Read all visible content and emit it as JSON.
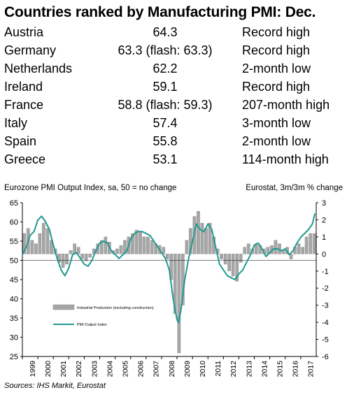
{
  "title": "Countries ranked by Manufacturing PMI: Dec.",
  "rankings": [
    {
      "country": "Austria",
      "value": "64.3",
      "note": "Record high"
    },
    {
      "country": "Germany",
      "value": "63.3 (flash: 63.3)",
      "note": "Record high"
    },
    {
      "country": "Netherlands",
      "value": "62.2",
      "note": "2-month low"
    },
    {
      "country": "Ireland",
      "value": "59.1",
      "note": "Record high"
    },
    {
      "country": "France",
      "value": "58.8 (flash: 59.3)",
      "note": "207-month high"
    },
    {
      "country": "Italy",
      "value": "57.4",
      "note": "3-month low"
    },
    {
      "country": "Spain",
      "value": "55.8",
      "note": "2-month low"
    },
    {
      "country": "Greece",
      "value": "53.1",
      "note": "114-month high"
    }
  ],
  "source": "Sources: IHS Markit, Eurostat",
  "chart_data": {
    "type": "bar+line",
    "left_axis_label": "Eurozone PMI Output Index, sa, 50 = no change",
    "right_axis_label": "Eurostat, 3m/3m % change",
    "left_ylim": [
      25,
      65
    ],
    "left_ticks": [
      "65",
      "60",
      "55",
      "50",
      "45",
      "40",
      "35",
      "30",
      "25"
    ],
    "right_ylim": [
      -6,
      3
    ],
    "right_ticks": [
      "3",
      "2",
      "1",
      "0",
      "-1",
      "-2",
      "-3",
      "-4",
      "-5",
      "-6"
    ],
    "x_ticks": [
      "1999",
      "2000",
      "2001",
      "2002",
      "2003",
      "2004",
      "2005",
      "2006",
      "2007",
      "2008",
      "2009",
      "2010",
      "2011",
      "2012",
      "2013",
      "2014",
      "2015",
      "2016",
      "2017"
    ],
    "x_range": [
      1999.0,
      2018.0
    ],
    "colors": {
      "bars": "#a6a6a6",
      "line": "#1f9a8e",
      "axis": "#000000"
    },
    "legend": {
      "placement": "left-middle",
      "bars_label": "Industrial Production (excluding construction)",
      "line_label": "PMI Output Index"
    },
    "series": [
      {
        "name": "PMI Output Index",
        "axis": "left",
        "x": [
          1999.0,
          1999.25,
          1999.5,
          1999.75,
          2000.0,
          2000.25,
          2000.5,
          2000.75,
          2001.0,
          2001.25,
          2001.5,
          2001.75,
          2002.0,
          2002.25,
          2002.5,
          2002.75,
          2003.0,
          2003.25,
          2003.5,
          2003.75,
          2004.0,
          2004.25,
          2004.5,
          2004.75,
          2005.0,
          2005.25,
          2005.5,
          2005.75,
          2006.0,
          2006.25,
          2006.5,
          2006.75,
          2007.0,
          2007.25,
          2007.5,
          2007.75,
          2008.0,
          2008.25,
          2008.5,
          2008.75,
          2009.0,
          2009.1,
          2009.25,
          2009.5,
          2009.75,
          2010.0,
          2010.25,
          2010.5,
          2010.75,
          2011.0,
          2011.25,
          2011.5,
          2011.75,
          2012.0,
          2012.25,
          2012.5,
          2012.75,
          2013.0,
          2013.25,
          2013.5,
          2013.75,
          2014.0,
          2014.25,
          2014.5,
          2014.75,
          2015.0,
          2015.25,
          2015.5,
          2015.75,
          2016.0,
          2016.25,
          2016.5,
          2016.75,
          2017.0,
          2017.25,
          2017.5,
          2017.75,
          2017.92
        ],
        "values": [
          51.5,
          53.5,
          56.5,
          57.5,
          60.5,
          61.5,
          60.0,
          58.0,
          54.0,
          50.5,
          47.5,
          46.0,
          48.0,
          51.5,
          52.0,
          50.5,
          49.0,
          48.5,
          50.0,
          52.5,
          54.5,
          55.0,
          54.5,
          52.5,
          51.5,
          50.5,
          51.5,
          52.5,
          55.5,
          57.0,
          57.5,
          57.5,
          57.0,
          56.5,
          55.0,
          53.5,
          52.0,
          50.5,
          47.5,
          40.0,
          34.5,
          33.8,
          37.0,
          45.0,
          50.5,
          55.0,
          59.5,
          58.0,
          57.5,
          59.5,
          58.0,
          53.5,
          49.0,
          47.5,
          46.0,
          45.5,
          45.0,
          46.5,
          47.5,
          49.5,
          51.5,
          54.0,
          54.5,
          53.0,
          51.0,
          52.0,
          53.0,
          53.0,
          52.5,
          53.0,
          51.5,
          52.5,
          54.5,
          56.0,
          57.0,
          58.0,
          59.5,
          62.2
        ]
      },
      {
        "name": "Industrial Production (excluding construction)",
        "axis": "right",
        "x": [
          1999.0,
          1999.25,
          1999.5,
          1999.75,
          2000.0,
          2000.25,
          2000.5,
          2000.75,
          2001.0,
          2001.25,
          2001.5,
          2001.75,
          2002.0,
          2002.25,
          2002.5,
          2002.75,
          2003.0,
          2003.25,
          2003.5,
          2003.75,
          2004.0,
          2004.25,
          2004.5,
          2004.75,
          2005.0,
          2005.25,
          2005.5,
          2005.75,
          2006.0,
          2006.25,
          2006.5,
          2006.75,
          2007.0,
          2007.25,
          2007.5,
          2007.75,
          2008.0,
          2008.25,
          2008.5,
          2008.75,
          2009.0,
          2009.25,
          2009.5,
          2009.75,
          2010.0,
          2010.25,
          2010.5,
          2010.75,
          2011.0,
          2011.25,
          2011.5,
          2011.75,
          2012.0,
          2012.25,
          2012.5,
          2012.75,
          2013.0,
          2013.25,
          2013.5,
          2013.75,
          2014.0,
          2014.25,
          2014.5,
          2014.75,
          2015.0,
          2015.25,
          2015.5,
          2015.75,
          2016.0,
          2016.25,
          2016.5,
          2016.75,
          2017.0,
          2017.25,
          2017.5,
          2017.75
        ],
        "values": [
          1.2,
          1.5,
          0.8,
          0.6,
          1.2,
          1.8,
          1.5,
          0.8,
          0.3,
          -0.5,
          -0.8,
          -0.6,
          0.2,
          0.6,
          0.4,
          -0.3,
          -0.4,
          -0.2,
          0.3,
          0.6,
          0.8,
          1.0,
          0.7,
          0.2,
          0.3,
          0.5,
          0.8,
          1.0,
          1.2,
          1.4,
          1.3,
          1.0,
          1.0,
          0.8,
          0.6,
          0.5,
          0.4,
          -0.3,
          -1.5,
          -3.5,
          -5.8,
          -3.0,
          0.8,
          1.5,
          2.2,
          2.5,
          1.8,
          1.5,
          1.8,
          1.0,
          0.3,
          -0.3,
          -0.6,
          -1.0,
          -1.3,
          -1.6,
          -0.5,
          0.4,
          0.6,
          0.3,
          0.6,
          0.5,
          0.3,
          0.4,
          0.5,
          0.8,
          0.6,
          0.2,
          0.4,
          -0.3,
          0.4,
          0.6,
          0.4,
          1.0,
          1.2,
          1.2
        ]
      }
    ]
  }
}
